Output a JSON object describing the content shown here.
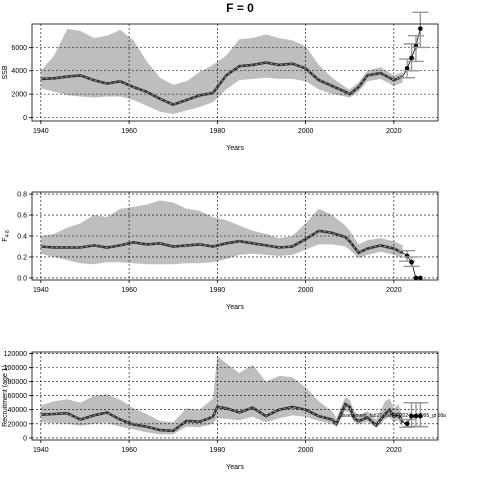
{
  "figure": {
    "title": "F = 0"
  },
  "chart_data": [
    {
      "type": "line",
      "ylabel": "SSB",
      "xlabel": "Years",
      "xlim": [
        1938,
        2030
      ],
      "ylim": [
        -300,
        8000
      ],
      "xticks": [
        1940,
        1960,
        1980,
        2000,
        2020
      ],
      "yticks": [
        0,
        2000,
        4000,
        6000
      ],
      "grid": true,
      "band_color": "#bebebe",
      "line_color": "#333333",
      "series": [
        {
          "role": "median",
          "x": [
            1940,
            1943,
            1946,
            1949,
            1952,
            1955,
            1958,
            1961,
            1964,
            1967,
            1970,
            1973,
            1976,
            1979,
            1982,
            1985,
            1988,
            1991,
            1994,
            1997,
            2000,
            2003,
            2006,
            2009,
            2010,
            2012,
            2014,
            2017,
            2020,
            2022
          ],
          "values": [
            3300,
            3350,
            3500,
            3600,
            3200,
            2900,
            3100,
            2600,
            2200,
            1600,
            1100,
            1500,
            1900,
            2100,
            3600,
            4400,
            4500,
            4700,
            4500,
            4600,
            4200,
            3200,
            2700,
            2200,
            2000,
            2600,
            3600,
            3800,
            3200,
            3500
          ]
        },
        {
          "role": "lower",
          "x": [
            1940,
            1943,
            1946,
            1949,
            1952,
            1955,
            1958,
            1961,
            1964,
            1967,
            1970,
            1973,
            1976,
            1979,
            1982,
            1985,
            1988,
            1991,
            1994,
            1997,
            2000,
            2003,
            2006,
            2009,
            2010,
            2012,
            2014,
            2017,
            2020,
            2022
          ],
          "values": [
            2500,
            2200,
            1900,
            1800,
            1700,
            1800,
            1800,
            1500,
            1000,
            500,
            300,
            600,
            900,
            1300,
            2400,
            3200,
            3300,
            3400,
            3300,
            3300,
            3100,
            2400,
            2000,
            1800,
            1700,
            2200,
            3100,
            3300,
            2700,
            3000
          ]
        },
        {
          "role": "upper",
          "x": [
            1940,
            1943,
            1946,
            1949,
            1952,
            1955,
            1958,
            1961,
            1964,
            1967,
            1970,
            1973,
            1976,
            1979,
            1982,
            1985,
            1988,
            1991,
            1994,
            1997,
            2000,
            2003,
            2006,
            2009,
            2010,
            2012,
            2014,
            2017,
            2020,
            2022
          ],
          "values": [
            4000,
            5300,
            7600,
            7400,
            6800,
            7000,
            7500,
            6600,
            4800,
            3400,
            2800,
            3100,
            3900,
            4500,
            5300,
            6700,
            6800,
            7100,
            6800,
            6600,
            6100,
            4500,
            3400,
            2600,
            2400,
            3000,
            4000,
            4300,
            3600,
            3900
          ]
        },
        {
          "role": "projection",
          "x": [
            2023,
            2024,
            2025,
            2026
          ],
          "values": [
            4200,
            5100,
            6100,
            7600
          ],
          "lower": [
            3400,
            4000,
            4800,
            6000
          ],
          "upper": [
            5000,
            6300,
            7000,
            9000
          ]
        }
      ]
    },
    {
      "type": "line",
      "ylabel": "F",
      "ylabel_sub": "4-8",
      "xlabel": "Years",
      "xlim": [
        1938,
        2030
      ],
      "ylim": [
        -0.02,
        0.82
      ],
      "xticks": [
        1940,
        1960,
        1980,
        2000,
        2020
      ],
      "yticks": [
        0.0,
        0.2,
        0.4,
        0.6,
        0.8
      ],
      "grid": true,
      "band_color": "#bebebe",
      "line_color": "#333333",
      "series": [
        {
          "role": "median",
          "x": [
            1940,
            1943,
            1946,
            1949,
            1952,
            1955,
            1958,
            1961,
            1964,
            1967,
            1970,
            1973,
            1976,
            1979,
            1982,
            1985,
            1988,
            1991,
            1994,
            1997,
            2000,
            2003,
            2006,
            2009,
            2010,
            2012,
            2014,
            2017,
            2020,
            2022
          ],
          "values": [
            0.3,
            0.29,
            0.29,
            0.29,
            0.31,
            0.29,
            0.31,
            0.34,
            0.32,
            0.33,
            0.3,
            0.31,
            0.32,
            0.3,
            0.33,
            0.35,
            0.33,
            0.31,
            0.29,
            0.3,
            0.37,
            0.45,
            0.43,
            0.39,
            0.35,
            0.24,
            0.28,
            0.31,
            0.28,
            0.24
          ]
        },
        {
          "role": "lower",
          "x": [
            1940,
            1943,
            1946,
            1949,
            1952,
            1955,
            1958,
            1961,
            1964,
            1967,
            1970,
            1973,
            1976,
            1979,
            1982,
            1985,
            1988,
            1991,
            1994,
            1997,
            2000,
            2003,
            2006,
            2009,
            2010,
            2012,
            2014,
            2017,
            2020,
            2022
          ],
          "values": [
            0.23,
            0.2,
            0.17,
            0.14,
            0.13,
            0.15,
            0.15,
            0.14,
            0.13,
            0.13,
            0.13,
            0.14,
            0.14,
            0.15,
            0.18,
            0.22,
            0.23,
            0.22,
            0.21,
            0.22,
            0.27,
            0.32,
            0.32,
            0.3,
            0.27,
            0.19,
            0.22,
            0.25,
            0.22,
            0.19
          ]
        },
        {
          "role": "upper",
          "x": [
            1940,
            1943,
            1946,
            1949,
            1952,
            1955,
            1958,
            1961,
            1964,
            1967,
            1970,
            1973,
            1976,
            1979,
            1982,
            1985,
            1988,
            1991,
            1994,
            1997,
            2000,
            2003,
            2006,
            2009,
            2010,
            2012,
            2014,
            2017,
            2020,
            2022
          ],
          "values": [
            0.4,
            0.42,
            0.48,
            0.52,
            0.6,
            0.58,
            0.66,
            0.68,
            0.7,
            0.74,
            0.72,
            0.66,
            0.64,
            0.58,
            0.55,
            0.5,
            0.45,
            0.42,
            0.38,
            0.4,
            0.52,
            0.66,
            0.6,
            0.5,
            0.45,
            0.32,
            0.36,
            0.38,
            0.35,
            0.31
          ]
        },
        {
          "role": "projection",
          "x": [
            2023,
            2024,
            2025,
            2026
          ],
          "values": [
            0.21,
            0.15,
            0.0,
            0.0
          ],
          "lower": [
            0.16,
            0.11,
            0.0,
            0.0
          ],
          "upper": [
            0.26,
            0.2,
            0.0,
            0.0
          ]
        }
      ]
    },
    {
      "type": "line",
      "ylabel": "Recruitment (age 1)",
      "xlabel": "Years",
      "xlim": [
        1938,
        2030
      ],
      "ylim": [
        -3000,
        122000
      ],
      "xticks": [
        1940,
        1960,
        1980,
        2000,
        2020
      ],
      "yticks": [
        0,
        20000,
        40000,
        60000,
        80000,
        100000,
        120000
      ],
      "grid": true,
      "band_color": "#bebebe",
      "line_color": "#333333",
      "annotation": "assessment_fab27_oxf18_2024_r18095_gt 58a",
      "series": [
        {
          "role": "median",
          "x": [
            1940,
            1943,
            1946,
            1949,
            1952,
            1955,
            1958,
            1961,
            1964,
            1967,
            1970,
            1973,
            1976,
            1979,
            1980,
            1982,
            1985,
            1988,
            1991,
            1994,
            1997,
            2000,
            2003,
            2006,
            2007,
            2009,
            2010,
            2011,
            2012,
            2014,
            2016,
            2018,
            2019,
            2020,
            2021,
            2022
          ],
          "values": [
            33000,
            34000,
            35000,
            26000,
            32000,
            36000,
            26000,
            19000,
            16000,
            11000,
            10000,
            24000,
            23000,
            30000,
            44000,
            42000,
            36000,
            43000,
            31000,
            40000,
            44000,
            40000,
            31000,
            26000,
            20000,
            48000,
            44000,
            28000,
            24000,
            29000,
            18000,
            34000,
            40000,
            30000,
            34000,
            22000
          ]
        },
        {
          "role": "lower",
          "x": [
            1940,
            1943,
            1946,
            1949,
            1952,
            1955,
            1958,
            1961,
            1964,
            1967,
            1970,
            1973,
            1976,
            1979,
            1980,
            1982,
            1985,
            1988,
            1991,
            1994,
            1997,
            2000,
            2003,
            2006,
            2007,
            2009,
            2010,
            2011,
            2012,
            2014,
            2016,
            2018,
            2019,
            2020,
            2021,
            2022
          ],
          "values": [
            22000,
            21000,
            20000,
            17000,
            20000,
            21000,
            16000,
            12000,
            8000,
            5000,
            5000,
            16000,
            15000,
            20000,
            28000,
            27000,
            25000,
            30000,
            22000,
            28000,
            32000,
            30000,
            24000,
            20000,
            15000,
            38000,
            35000,
            22000,
            19000,
            23000,
            14000,
            26000,
            30000,
            22000,
            25000,
            16000
          ]
        },
        {
          "role": "upper",
          "x": [
            1940,
            1943,
            1946,
            1949,
            1952,
            1955,
            1958,
            1961,
            1964,
            1967,
            1970,
            1973,
            1976,
            1979,
            1980,
            1982,
            1985,
            1988,
            1991,
            1994,
            1997,
            2000,
            2003,
            2006,
            2007,
            2009,
            2010,
            2011,
            2012,
            2014,
            2016,
            2018,
            2019,
            2020,
            2021,
            2022
          ],
          "values": [
            46000,
            52000,
            55000,
            50000,
            60000,
            62000,
            54000,
            42000,
            34000,
            24000,
            22000,
            42000,
            40000,
            56000,
            116000,
            106000,
            92000,
            104000,
            80000,
            88000,
            86000,
            72000,
            52000,
            38000,
            28000,
            58000,
            54000,
            38000,
            32000,
            38000,
            26000,
            52000,
            56000,
            42000,
            48000,
            30000
          ]
        },
        {
          "role": "projection",
          "x": [
            2023,
            2024,
            2025,
            2026
          ],
          "values": [
            20000,
            31000,
            31000,
            31000
          ],
          "lower": [
            15000,
            16000,
            16000,
            16000
          ],
          "upper": [
            26000,
            50000,
            50000,
            50000
          ]
        }
      ]
    }
  ]
}
